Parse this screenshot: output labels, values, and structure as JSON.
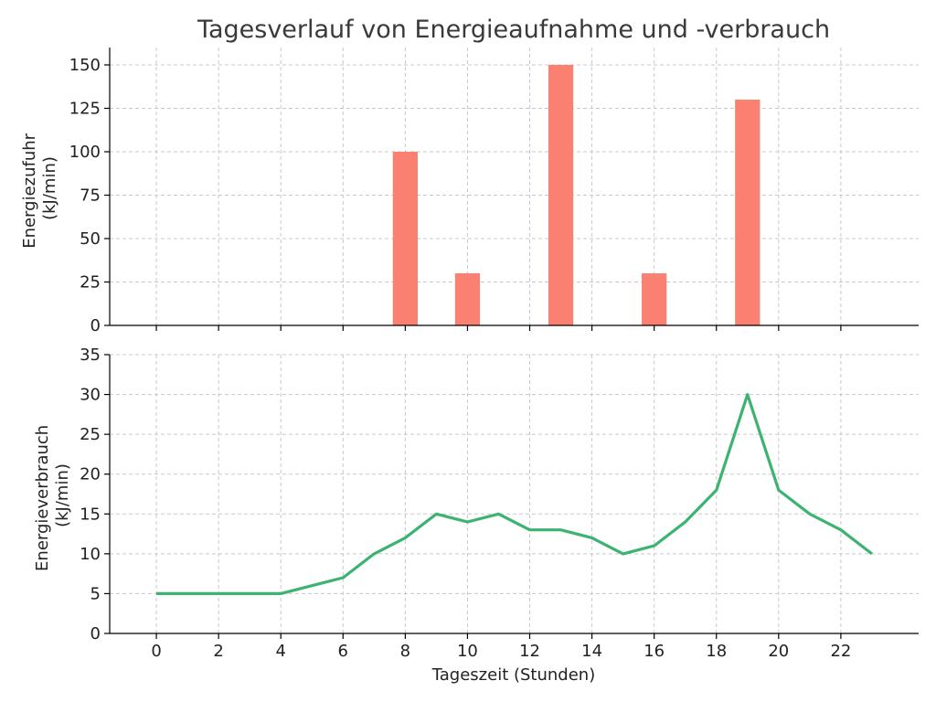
{
  "chart_data": [
    {
      "type": "bar",
      "title": "Tagesverlauf von Energieaufnahme und -verbrauch",
      "ylabel_lines": [
        "Energiezufuhr",
        "(kJ/min)"
      ],
      "ylim": [
        0,
        160
      ],
      "yticks": [
        0,
        25,
        50,
        75,
        100,
        125,
        150
      ],
      "xlim": [
        -1.5,
        24.5
      ],
      "grid": true,
      "color": "#fa8072",
      "x": [
        8,
        10,
        13,
        16,
        19
      ],
      "values": [
        100,
        30,
        150,
        30,
        130
      ]
    },
    {
      "type": "line",
      "ylabel_lines": [
        "Energieverbrauch",
        "(kJ/min)"
      ],
      "xlabel": "Tageszeit (Stunden)",
      "ylim": [
        0,
        35
      ],
      "yticks": [
        0,
        5,
        10,
        15,
        20,
        25,
        30,
        35
      ],
      "xlim": [
        -1.5,
        24.5
      ],
      "xticks": [
        0,
        2,
        4,
        6,
        8,
        10,
        12,
        14,
        16,
        18,
        20,
        22
      ],
      "grid": true,
      "color": "#3cb371",
      "x": [
        0,
        1,
        2,
        3,
        4,
        5,
        6,
        7,
        8,
        9,
        10,
        11,
        12,
        13,
        14,
        15,
        16,
        17,
        18,
        19,
        20,
        21,
        22,
        23
      ],
      "values": [
        5,
        5,
        5,
        5,
        5,
        6,
        7,
        10,
        12,
        15,
        14,
        15,
        13,
        13,
        12,
        10,
        11,
        14,
        18,
        30,
        18,
        15,
        13,
        10
      ]
    }
  ]
}
